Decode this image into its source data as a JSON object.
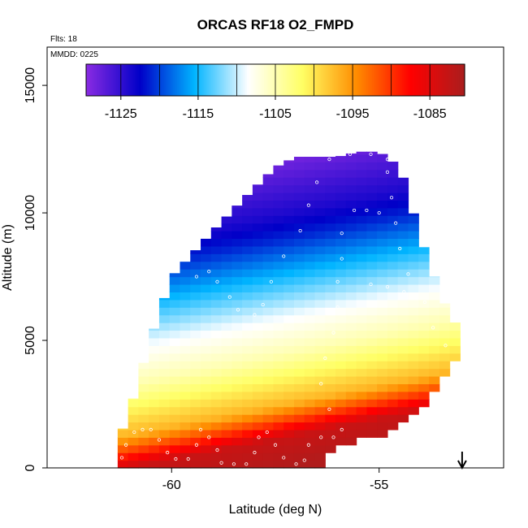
{
  "chart_data": {
    "type": "heatmap",
    "title": "ORCAS RF18 O2_FMPD",
    "annotations": {
      "flights": "Flts: 18",
      "date": "MMDD: 0225"
    },
    "xlabel": "Latitude (deg N)",
    "ylabel": "Altitude (m)",
    "xlim": [
      -63,
      -52
    ],
    "ylim": [
      0,
      16500
    ],
    "x_ticks": [
      -60,
      -55
    ],
    "y_ticks": [
      0,
      5000,
      10000,
      15000
    ],
    "colorbar": {
      "ticks": [
        -1125,
        -1115,
        -1105,
        -1095,
        -1085
      ],
      "range": [
        -1129.5,
        -1080.5
      ],
      "colors": [
        "#8a2be2",
        "#0000c8",
        "#00b4ff",
        "#ffffff",
        "#ffff64",
        "#ff8c00",
        "#ff0000",
        "#aa1e1e"
      ]
    },
    "field": {
      "lat_range": [
        -61.3,
        -53.2
      ],
      "alt_step": 300,
      "envelope": [
        {
          "lat": -61.3,
          "alt_min": 200,
          "alt_max": 1000
        },
        {
          "lat": -61.0,
          "alt_min": 200,
          "alt_max": 2300
        },
        {
          "lat": -60.5,
          "alt_min": 200,
          "alt_max": 5100
        },
        {
          "lat": -60.0,
          "alt_min": 200,
          "alt_max": 7500
        },
        {
          "lat": -59.5,
          "alt_min": 200,
          "alt_max": 8400
        },
        {
          "lat": -59.0,
          "alt_min": 0,
          "alt_max": 9300
        },
        {
          "lat": -58.3,
          "alt_min": 0,
          "alt_max": 10500
        },
        {
          "lat": -57.5,
          "alt_min": 0,
          "alt_max": 11800
        },
        {
          "lat": -57.0,
          "alt_min": 0,
          "alt_max": 12200
        },
        {
          "lat": -56.5,
          "alt_min": 0,
          "alt_max": 12200
        },
        {
          "lat": -56.0,
          "alt_min": 1000,
          "alt_max": 12200
        },
        {
          "lat": -55.5,
          "alt_min": 1200,
          "alt_max": 12400
        },
        {
          "lat": -55.0,
          "alt_min": 1300,
          "alt_max": 12400
        },
        {
          "lat": -54.5,
          "alt_min": 1800,
          "alt_max": 11800
        },
        {
          "lat": -54.0,
          "alt_min": 2500,
          "alt_max": 9000
        },
        {
          "lat": -53.5,
          "alt_min": 3500,
          "alt_max": 6700
        },
        {
          "lat": -53.2,
          "alt_min": 4300,
          "alt_max": 5700
        }
      ],
      "profile": [
        {
          "alt": 0,
          "value": -1081
        },
        {
          "alt": 1200,
          "value": -1083
        },
        {
          "alt": 1800,
          "value": -1090
        },
        {
          "alt": 2500,
          "value": -1097
        },
        {
          "alt": 3500,
          "value": -1101
        },
        {
          "alt": 4500,
          "value": -1105
        },
        {
          "alt": 6000,
          "value": -1109
        },
        {
          "alt": 7000,
          "value": -1113
        },
        {
          "alt": 8000,
          "value": -1117
        },
        {
          "alt": 9000,
          "value": -1121
        },
        {
          "alt": 10000,
          "value": -1124
        },
        {
          "alt": 11000,
          "value": -1126
        },
        {
          "alt": 12500,
          "value": -1129
        }
      ],
      "tilt_per_deg": 320
    },
    "flight_track": [
      {
        "lat": -61.4,
        "alt": 300
      },
      {
        "lat": -61.2,
        "alt": 400
      },
      {
        "lat": -61.1,
        "alt": 900
      },
      {
        "lat": -60.9,
        "alt": 1400
      },
      {
        "lat": -60.7,
        "alt": 1500
      },
      {
        "lat": -60.5,
        "alt": 1500
      },
      {
        "lat": -60.3,
        "alt": 1100
      },
      {
        "lat": -60.1,
        "alt": 600
      },
      {
        "lat": -59.9,
        "alt": 350
      },
      {
        "lat": -59.6,
        "alt": 350
      },
      {
        "lat": -59.4,
        "alt": 900
      },
      {
        "lat": -59.3,
        "alt": 1500
      },
      {
        "lat": -59.1,
        "alt": 1200
      },
      {
        "lat": -58.9,
        "alt": 700
      },
      {
        "lat": -58.8,
        "alt": 200
      },
      {
        "lat": -58.5,
        "alt": 150
      },
      {
        "lat": -58.2,
        "alt": 150
      },
      {
        "lat": -58.0,
        "alt": 600
      },
      {
        "lat": -57.9,
        "alt": 1200
      },
      {
        "lat": -57.7,
        "alt": 1400
      },
      {
        "lat": -57.5,
        "alt": 900
      },
      {
        "lat": -57.3,
        "alt": 400
      },
      {
        "lat": -57.0,
        "alt": 150
      },
      {
        "lat": -56.8,
        "alt": 300
      },
      {
        "lat": -56.7,
        "alt": 900
      },
      {
        "lat": -56.4,
        "alt": 1200
      },
      {
        "lat": -56.1,
        "alt": 1200
      },
      {
        "lat": -55.9,
        "alt": 800
      },
      {
        "lat": -55.8,
        "alt": 400
      },
      {
        "lat": -55.9,
        "alt": 1500
      },
      {
        "lat": -59.4,
        "alt": 7500
      },
      {
        "lat": -59.1,
        "alt": 7700
      },
      {
        "lat": -58.9,
        "alt": 7300
      },
      {
        "lat": -58.6,
        "alt": 6700
      },
      {
        "lat": -58.4,
        "alt": 6200
      },
      {
        "lat": -58.0,
        "alt": 6000
      },
      {
        "lat": -57.8,
        "alt": 6400
      },
      {
        "lat": -57.6,
        "alt": 7300
      },
      {
        "lat": -57.3,
        "alt": 8300
      },
      {
        "lat": -56.9,
        "alt": 9300
      },
      {
        "lat": -56.7,
        "alt": 10300
      },
      {
        "lat": -56.5,
        "alt": 11200
      },
      {
        "lat": -56.2,
        "alt": 12100
      },
      {
        "lat": -55.7,
        "alt": 12300
      },
      {
        "lat": -55.2,
        "alt": 12300
      },
      {
        "lat": -54.8,
        "alt": 12100
      },
      {
        "lat": -54.8,
        "alt": 11600
      },
      {
        "lat": -54.7,
        "alt": 10600
      },
      {
        "lat": -54.6,
        "alt": 9600
      },
      {
        "lat": -54.5,
        "alt": 8600
      },
      {
        "lat": -54.3,
        "alt": 7600
      },
      {
        "lat": -53.9,
        "alt": 6500
      },
      {
        "lat": -53.7,
        "alt": 5500
      },
      {
        "lat": -53.4,
        "alt": 4800
      },
      {
        "lat": -55.6,
        "alt": 10100
      },
      {
        "lat": -55.3,
        "alt": 10100
      },
      {
        "lat": -55.0,
        "alt": 10000
      },
      {
        "lat": -55.9,
        "alt": 9200
      },
      {
        "lat": -55.9,
        "alt": 8200
      },
      {
        "lat": -56.0,
        "alt": 7300
      },
      {
        "lat": -56.0,
        "alt": 6300
      },
      {
        "lat": -56.1,
        "alt": 5300
      },
      {
        "lat": -56.3,
        "alt": 4300
      },
      {
        "lat": -56.4,
        "alt": 3300
      },
      {
        "lat": -56.2,
        "alt": 2300
      },
      {
        "lat": -55.2,
        "alt": 7200
      },
      {
        "lat": -54.8,
        "alt": 7100
      },
      {
        "lat": -54.4,
        "alt": 6900
      }
    ],
    "marker": {
      "lat": -53.0,
      "type": "down-arrow"
    }
  }
}
